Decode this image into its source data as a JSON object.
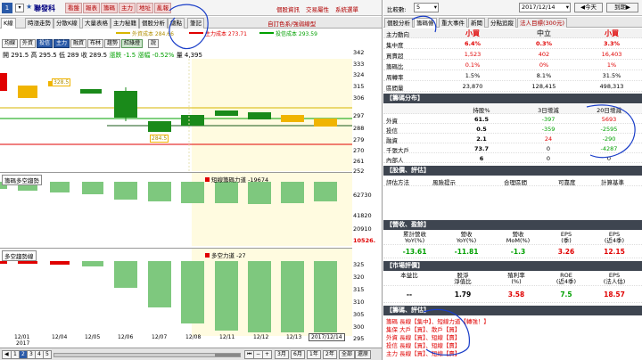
{
  "window": {
    "number_badge": "1",
    "stock_name": "聯發科",
    "tool_buttons": [
      "看盤",
      "報表",
      "籌碼",
      "主力",
      "地址",
      "亂報"
    ],
    "top_links": [
      "個股資訊",
      "交易屬性",
      "系統選單"
    ]
  },
  "tabs": {
    "items": [
      "K線",
      "時漲走勢",
      "分散K線",
      "大量表格",
      "主力秘籍",
      "個股分析",
      "總點",
      "筆記"
    ],
    "ticker_text": "自訂色系/強弱線型"
  },
  "toolbar": {
    "items": [
      "均線",
      "外資",
      "投信",
      "主力",
      "融資",
      "布林",
      "趨勢",
      "紅綠燈",
      "說"
    ],
    "legend": [
      {
        "label": "外資成本 284.66",
        "color": "#d7b600"
      },
      {
        "label": "主力成本 273.71",
        "color": "#e00000"
      },
      {
        "label": "投信成本 293.59",
        "color": "#00a000"
      }
    ]
  },
  "info_line": {
    "open": "開 291.5",
    "high": "高 295.5",
    "low": "低 289",
    "close": "收 289.5",
    "change": "漲跌 -1.5",
    "pct": "漲幅 -0.52%",
    "vol": "量 4,395"
  },
  "price_axis": [
    "342",
    "333",
    "324",
    "315",
    "306",
    "297",
    "288",
    "279",
    "270",
    "261",
    "252"
  ],
  "price_annotations": {
    "high": "328.5",
    "low": "284.5"
  },
  "pane2": {
    "label": "籌碼多空趨勢",
    "indicator": "短線籌碼力道 -19674",
    "axis": [
      "62730",
      "41820",
      "20910",
      "10526."
    ]
  },
  "pane3": {
    "label": "多空趨勢線",
    "indicator": "多空力道 -27",
    "axis": [
      "325",
      "320",
      "315",
      "310",
      "305",
      "300",
      "295"
    ]
  },
  "dates": [
    "12/01",
    "12/04",
    "12/05",
    "12/06",
    "12/07",
    "12/08",
    "12/11",
    "12/12",
    "12/13",
    "12/14"
  ],
  "year_label": "2017",
  "current_date": "2017/12/14",
  "bottom_nav": {
    "pages": [
      "1",
      "2",
      "3",
      "4",
      "5"
    ],
    "periods": [
      "3月",
      "6月",
      "1年",
      "2年",
      "全部",
      "還原"
    ]
  },
  "right_top": {
    "label": "比較數:",
    "select_value": "5",
    "date_value": "2017/12/14",
    "prev_button": "今天",
    "next_button": "到期"
  },
  "right_tabs": [
    {
      "label": "個股分析",
      "red": false
    },
    {
      "label": "籌碼條",
      "red": false
    },
    {
      "label": "重大事件",
      "red": false
    },
    {
      "label": "新聞",
      "red": false
    },
    {
      "label": "分點追蹤",
      "red": false
    },
    {
      "label": "法人目標(300元)",
      "red": true
    }
  ],
  "summary": {
    "header": [
      "主力動向",
      "小買",
      "中立",
      "小買"
    ],
    "rows": [
      {
        "label": "集中度",
        "v": [
          "6.4%",
          "0.3%",
          "3.3%"
        ],
        "colors": [
          "red",
          "red",
          "red"
        ]
      },
      {
        "label": "買賣超",
        "v": [
          "1,523",
          "402",
          "16,403"
        ],
        "colors": [
          "red",
          "red",
          "red"
        ]
      },
      {
        "label": "籌碼比",
        "v": [
          "0.1%",
          "0%",
          "1%"
        ],
        "colors": [
          "red",
          "red",
          "red"
        ]
      },
      {
        "label": "周轉率",
        "v": [
          "1.5%",
          "8.1%",
          "31.5%"
        ],
        "colors": [
          "k",
          "k",
          "k"
        ]
      },
      {
        "label": "區間量",
        "v": [
          "23,870",
          "128,415",
          "498,313"
        ],
        "colors": [
          "k",
          "k",
          "k"
        ]
      }
    ]
  },
  "chip": {
    "title": "籌碼分布",
    "cols": [
      "持股%",
      "3日增減",
      "20日增減"
    ],
    "rows": [
      {
        "label": "外資",
        "v": [
          "61.5",
          "-397",
          "5693"
        ],
        "colors": [
          "k",
          "grn",
          "red"
        ]
      },
      {
        "label": "投信",
        "v": [
          "0.5",
          "-359",
          "-2595"
        ],
        "colors": [
          "k",
          "grn",
          "grn"
        ]
      },
      {
        "label": "融資",
        "v": [
          "2.1",
          "24",
          "-290"
        ],
        "colors": [
          "k",
          "red",
          "grn"
        ]
      },
      {
        "label": "千張大戶",
        "v": [
          "73.7",
          "0",
          "-4287"
        ],
        "colors": [
          "k",
          "k",
          "grn"
        ]
      },
      {
        "label": "內部人",
        "v": [
          "6",
          "0",
          "0"
        ],
        "colors": [
          "k",
          "k",
          "k"
        ]
      }
    ]
  },
  "eval": {
    "title": "股價、評估",
    "cols": [
      "評估方法",
      "風險提示",
      "合理區間",
      "可靠度",
      "計算基準"
    ]
  },
  "revenue": {
    "title": "營收、盈餘",
    "cols": [
      "累計營收\nYoY(%)",
      "營收\nYoY(%)",
      "營收\nMoM(%)",
      "EPS\n(季)",
      "EPS\n(近4季)"
    ],
    "values": [
      "-13.61",
      "-11.81",
      "-1.3",
      "3.26",
      "12.15"
    ],
    "colors": [
      "grn",
      "grn",
      "grn",
      "red",
      "red"
    ]
  },
  "market": {
    "title": "市場評價",
    "cols": [
      "本益比",
      "股淨\n淨值比",
      "殖利率\n(%)",
      "ROE\n(近4季)",
      "EPS\n(法人估)"
    ],
    "values": [
      "--",
      "1.79",
      "3.58",
      "7.5",
      "18.57"
    ],
    "colors": [
      "k",
      "k",
      "red",
      "grn",
      "red"
    ]
  },
  "review": {
    "title": "籌碼、評估",
    "lines": [
      "籌碼 長線【集中】、短線力道【轉強！】",
      "集保 大戶【買】、散戶【買】",
      "外資 長線【買】、短線【賣】",
      "投信 長線【買】、短線【賣】",
      "主力 長線【買】、短線【賣】"
    ]
  },
  "colors": {
    "up_candle": "#e00000",
    "down_candle": "#1a8a1a",
    "foreign": "#f0b400",
    "highlight": "#fffbe0",
    "section_header": "#3e4550",
    "indicator_bar": "#7ec87e"
  }
}
